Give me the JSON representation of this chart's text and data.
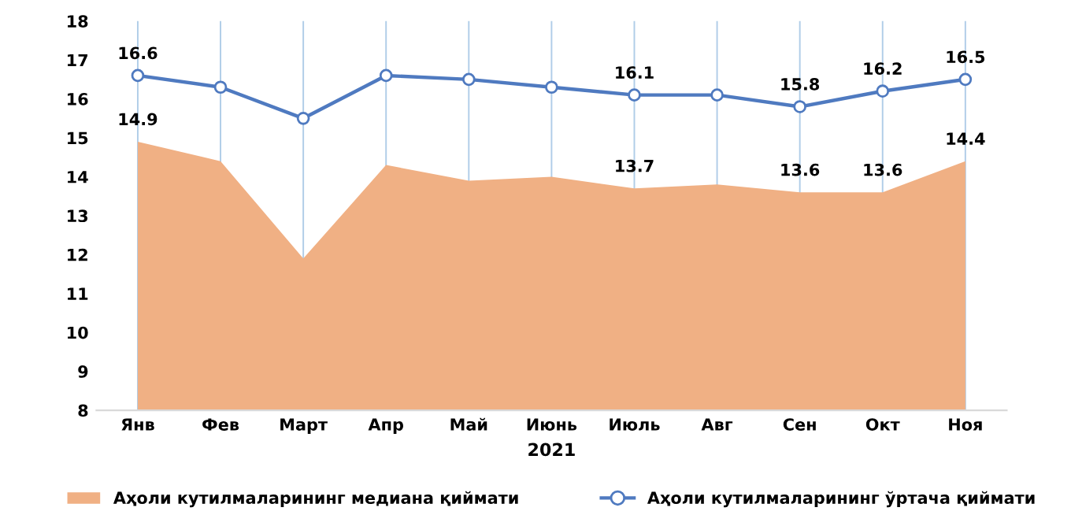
{
  "chart_data": {
    "type": "area",
    "xlabel": "2021",
    "categories": [
      "Янв",
      "Фев",
      "Март",
      "Апр",
      "Май",
      "Июнь",
      "Июль",
      "Авг",
      "Сен",
      "Окт",
      "Ноя"
    ],
    "series": [
      {
        "name": "Аҳоли кутилмаларининг медиана қиймати",
        "color": "#f0b084",
        "values": [
          14.9,
          14.4,
          11.9,
          14.3,
          13.9,
          14.0,
          13.7,
          13.8,
          13.6,
          13.6,
          14.4
        ],
        "value_labels": [
          "14.9",
          null,
          null,
          null,
          null,
          null,
          "13.7",
          null,
          "13.6",
          "13.6",
          "14.4"
        ]
      },
      {
        "name": "Аҳоли кутилмаларининг ўртача қиймати",
        "type": "line",
        "color": "#4f7ac0",
        "marker": "circle",
        "values": [
          16.6,
          16.3,
          15.5,
          16.6,
          16.5,
          16.3,
          16.1,
          16.1,
          15.8,
          16.2,
          16.5
        ],
        "value_labels": [
          "16.6",
          null,
          null,
          null,
          null,
          null,
          "16.1",
          null,
          "15.8",
          "16.2",
          "16.5"
        ]
      }
    ],
    "ylim": [
      8,
      18
    ],
    "yticks": [
      8,
      9,
      10,
      11,
      12,
      13,
      14,
      15,
      16,
      17,
      18
    ],
    "grid": "x",
    "legend": "bottom"
  }
}
